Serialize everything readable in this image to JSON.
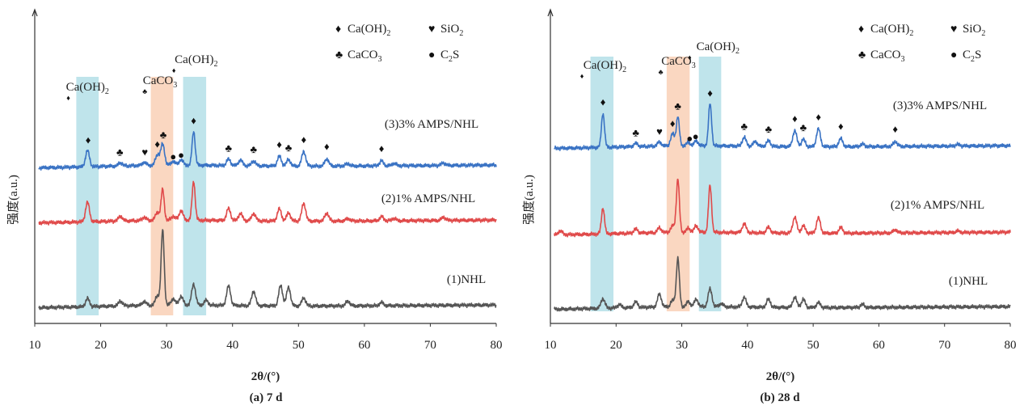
{
  "chart_data": [
    {
      "type": "line",
      "caption": "(a) 7 d",
      "xlabel": "2θ/(°)",
      "ylabel": "强度(a.u.)",
      "xlim": [
        10,
        80
      ],
      "xticks": [
        "10",
        "20",
        "30",
        "40",
        "50",
        "60",
        "70",
        "80"
      ],
      "highlight_bands": [
        {
          "from": 16.3,
          "to": 19.7,
          "color": "#a9dbe4"
        },
        {
          "from": 27.6,
          "to": 31.0,
          "color": "#f8c9ac"
        },
        {
          "from": 32.5,
          "to": 36.0,
          "color": "#a9dbe4"
        }
      ],
      "legend": {
        "position": "top-right",
        "items": [
          {
            "symbol": "♦",
            "text": "Ca(OH)",
            "sub": "2"
          },
          {
            "symbol": "♥",
            "text": "SiO",
            "sub": "2"
          },
          {
            "symbol": "♣",
            "text": "CaCO",
            "sub": "3"
          },
          {
            "symbol": "●",
            "text": "C",
            "sub": "2",
            "tail": "S"
          }
        ]
      },
      "phase_labels": [
        {
          "x": 18.0,
          "text": "Ca(OH)",
          "sub": "2",
          "marker": "♦",
          "marker_x": 15.1
        },
        {
          "x": 29.0,
          "text": "CaCO",
          "sub": "3",
          "marker": "♣",
          "marker_x": 26.7
        },
        {
          "x": 34.5,
          "text": "Ca(OH)",
          "sub": "2",
          "marker": "♦",
          "marker_x": 31.1
        }
      ],
      "peak_markers": [
        {
          "x": 18.1,
          "symbol": "♦"
        },
        {
          "x": 22.9,
          "symbol": "♣"
        },
        {
          "x": 26.7,
          "symbol": "♥"
        },
        {
          "x": 28.6,
          "symbol": "♦"
        },
        {
          "x": 29.5,
          "symbol": "♣"
        },
        {
          "x": 31.0,
          "symbol": "●"
        },
        {
          "x": 32.2,
          "symbol": "●"
        },
        {
          "x": 34.1,
          "symbol": "♦"
        },
        {
          "x": 39.4,
          "symbol": "♣"
        },
        {
          "x": 43.2,
          "symbol": "♣"
        },
        {
          "x": 47.1,
          "symbol": "♦"
        },
        {
          "x": 48.5,
          "symbol": "♣"
        },
        {
          "x": 50.8,
          "symbol": "♦"
        },
        {
          "x": 54.3,
          "symbol": "♦"
        },
        {
          "x": 62.6,
          "symbol": "♦"
        }
      ],
      "series": [
        {
          "name": "(3)3% AMPS/NHL",
          "color": "#3a73c4",
          "offset": 2,
          "peaks": [
            [
              18.0,
              20
            ],
            [
              23.0,
              4
            ],
            [
              26.6,
              4
            ],
            [
              28.6,
              13
            ],
            [
              29.4,
              26
            ],
            [
              31.0,
              5
            ],
            [
              32.2,
              7
            ],
            [
              34.1,
              42
            ],
            [
              39.4,
              8
            ],
            [
              41.2,
              7
            ],
            [
              43.2,
              6
            ],
            [
              47.1,
              12
            ],
            [
              48.5,
              8
            ],
            [
              50.8,
              18
            ],
            [
              54.3,
              9
            ],
            [
              57.5,
              3
            ],
            [
              62.6,
              6
            ],
            [
              64.5,
              3
            ],
            [
              72.0,
              3
            ]
          ]
        },
        {
          "name": "(2)1% AMPS/NHL",
          "color": "#e04a4a",
          "offset": 1,
          "peaks": [
            [
              18.0,
              24
            ],
            [
              23.0,
              6
            ],
            [
              26.6,
              4
            ],
            [
              28.6,
              10
            ],
            [
              29.4,
              38
            ],
            [
              31.0,
              5
            ],
            [
              32.2,
              12
            ],
            [
              34.1,
              48
            ],
            [
              39.4,
              15
            ],
            [
              41.2,
              9
            ],
            [
              43.2,
              9
            ],
            [
              47.1,
              15
            ],
            [
              48.5,
              10
            ],
            [
              50.8,
              22
            ],
            [
              54.3,
              10
            ],
            [
              57.5,
              3
            ],
            [
              62.6,
              5
            ],
            [
              64.5,
              3
            ],
            [
              72.0,
              4
            ]
          ]
        },
        {
          "name": "(1)NHL",
          "color": "#555555",
          "offset": 0,
          "peaks": [
            [
              18.0,
              10
            ],
            [
              23.0,
              6
            ],
            [
              26.6,
              5
            ],
            [
              28.6,
              12
            ],
            [
              29.4,
              92
            ],
            [
              31.0,
              8
            ],
            [
              32.2,
              11
            ],
            [
              34.1,
              26
            ],
            [
              36.0,
              6
            ],
            [
              39.4,
              24
            ],
            [
              43.2,
              18
            ],
            [
              47.3,
              25
            ],
            [
              48.5,
              23
            ],
            [
              50.8,
              10
            ],
            [
              57.5,
              6
            ],
            [
              62.6,
              4
            ]
          ]
        }
      ]
    },
    {
      "type": "line",
      "caption": "(b) 28 d",
      "xlabel": "2θ/(°)",
      "ylabel": "强度(a.u.)",
      "xlim": [
        10,
        80
      ],
      "xticks": [
        "10",
        "20",
        "30",
        "40",
        "50",
        "60",
        "70",
        "80"
      ],
      "highlight_bands": [
        {
          "from": 16.1,
          "to": 19.6,
          "color": "#a9dbe4"
        },
        {
          "from": 27.7,
          "to": 31.2,
          "color": "#f8c9ac"
        },
        {
          "from": 32.6,
          "to": 36.0,
          "color": "#a9dbe4"
        }
      ],
      "legend": {
        "position": "top-right",
        "items": [
          {
            "symbol": "♦",
            "text": "Ca(OH)",
            "sub": "2"
          },
          {
            "symbol": "♥",
            "text": "SiO",
            "sub": "2"
          },
          {
            "symbol": "♣",
            "text": "CaCO",
            "sub": "3"
          },
          {
            "symbol": "●",
            "text": "C",
            "sub": "2",
            "tail": "S"
          }
        ]
      },
      "phase_labels": [
        {
          "x": 18.3,
          "text": "Ca(OH)",
          "sub": "2",
          "marker": "♦",
          "marker_x": 14.8
        },
        {
          "x": 29.5,
          "text": "CaCO",
          "sub": "3",
          "marker": "♣",
          "marker_x": 26.8
        },
        {
          "x": 35.5,
          "text": "Ca(OH)",
          "sub": "2",
          "marker": "♦",
          "marker_x": 31.2
        }
      ],
      "peak_markers": [
        {
          "x": 18.0,
          "symbol": "♦"
        },
        {
          "x": 23.0,
          "symbol": "♣"
        },
        {
          "x": 26.6,
          "symbol": "♥"
        },
        {
          "x": 28.6,
          "symbol": "♦"
        },
        {
          "x": 29.4,
          "symbol": "♣"
        },
        {
          "x": 31.2,
          "symbol": "●"
        },
        {
          "x": 32.1,
          "symbol": "●"
        },
        {
          "x": 34.3,
          "symbol": "♦"
        },
        {
          "x": 39.5,
          "symbol": "♣"
        },
        {
          "x": 43.2,
          "symbol": "♣"
        },
        {
          "x": 47.2,
          "symbol": "♦"
        },
        {
          "x": 48.5,
          "symbol": "♣"
        },
        {
          "x": 50.8,
          "symbol": "♦"
        },
        {
          "x": 54.2,
          "symbol": "♦"
        },
        {
          "x": 62.5,
          "symbol": "♦"
        }
      ],
      "series": [
        {
          "name": "(3)3% AMPS/NHL",
          "color": "#3a73c4",
          "offset": 2,
          "peaks": [
            [
              18.0,
              42
            ],
            [
              23.0,
              4
            ],
            [
              26.6,
              5
            ],
            [
              28.6,
              15
            ],
            [
              29.4,
              36
            ],
            [
              31.0,
              4
            ],
            [
              32.2,
              6
            ],
            [
              34.3,
              52
            ],
            [
              39.5,
              11
            ],
            [
              41.2,
              6
            ],
            [
              43.2,
              7
            ],
            [
              47.2,
              20
            ],
            [
              48.5,
              9
            ],
            [
              50.8,
              22
            ],
            [
              54.2,
              10
            ],
            [
              57.5,
              3
            ],
            [
              62.5,
              6
            ],
            [
              72.0,
              2
            ]
          ]
        },
        {
          "name": "(2)1% AMPS/NHL",
          "color": "#e04a4a",
          "offset": 1,
          "peaks": [
            [
              11.5,
              5
            ],
            [
              18.0,
              32
            ],
            [
              23.0,
              5
            ],
            [
              26.6,
              6
            ],
            [
              28.6,
              8
            ],
            [
              29.4,
              66
            ],
            [
              31.0,
              5
            ],
            [
              32.2,
              8
            ],
            [
              34.3,
              58
            ],
            [
              39.5,
              11
            ],
            [
              43.2,
              7
            ],
            [
              47.2,
              20
            ],
            [
              48.5,
              9
            ],
            [
              50.8,
              19
            ],
            [
              54.2,
              7
            ],
            [
              62.5,
              4
            ],
            [
              72.0,
              2
            ]
          ]
        },
        {
          "name": "(1)NHL",
          "color": "#555555",
          "offset": 0,
          "peaks": [
            [
              18.0,
              12
            ],
            [
              20.5,
              4
            ],
            [
              23.0,
              7
            ],
            [
              26.6,
              16
            ],
            [
              28.6,
              8
            ],
            [
              29.4,
              60
            ],
            [
              31.0,
              6
            ],
            [
              32.2,
              9
            ],
            [
              34.3,
              22
            ],
            [
              36.0,
              4
            ],
            [
              39.5,
              12
            ],
            [
              43.2,
              10
            ],
            [
              47.2,
              13
            ],
            [
              48.5,
              10
            ],
            [
              50.8,
              6
            ],
            [
              57.5,
              4
            ]
          ]
        }
      ]
    }
  ]
}
